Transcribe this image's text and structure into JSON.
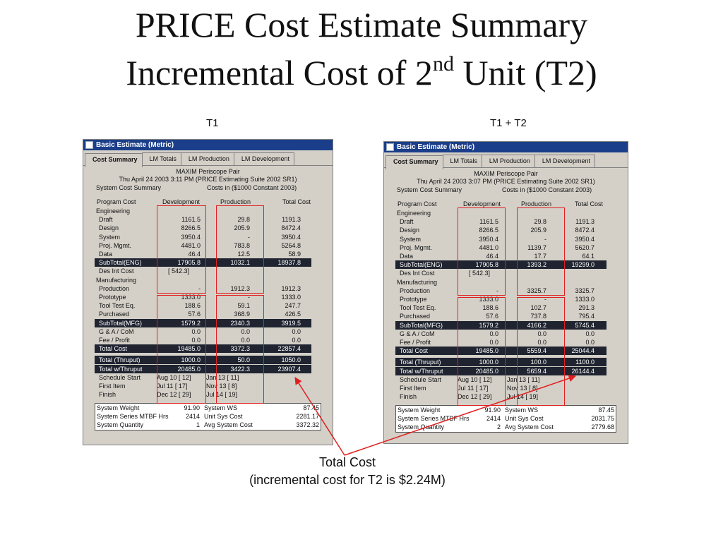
{
  "slide": {
    "title_line1": "PRICE Cost Estimate Summary",
    "title_line2_pre": "Incremental Cost of 2",
    "title_line2_sup": "nd",
    "title_line2_post": " Unit (T2)",
    "label_left": "T1",
    "label_right": "T1 + T2",
    "caption_line1": "Total Cost",
    "caption_line2": "(incremental cost for T2 is $2.24M)",
    "arrow_color": "#e02020"
  },
  "panels": [
    {
      "window_title": "Basic Estimate (Metric)",
      "tabs": [
        "Cost Summary",
        "LM Totals",
        "LM Production",
        "LM Development"
      ],
      "active_tab": 0,
      "project": "MAXIM Periscope Pair",
      "timestamp": "Thu April 24 2003 3:11 PM (PRICE Estimating Suite 2002 SR1)",
      "summary_label": "System Cost Summary",
      "costs_in": "Costs in ($1000 Constant 2003)",
      "col_headers": [
        "Program Cost",
        "Development",
        "Production",
        "Total Cost"
      ],
      "rows": [
        {
          "label": "Engineering",
          "indent": 0,
          "dark": false,
          "v": [
            "",
            "",
            ""
          ]
        },
        {
          "label": "Draft",
          "indent": 1,
          "dark": false,
          "v": [
            "1161.5",
            "29.8",
            "1191.3"
          ]
        },
        {
          "label": "Design",
          "indent": 1,
          "dark": false,
          "v": [
            "8266.5",
            "205.9",
            "8472.4"
          ]
        },
        {
          "label": "System",
          "indent": 1,
          "dark": false,
          "v": [
            "3950.4",
            "-",
            "3950.4"
          ]
        },
        {
          "label": "Proj. Mgmt.",
          "indent": 1,
          "dark": false,
          "v": [
            "4481.0",
            "783.8",
            "5264.8"
          ]
        },
        {
          "label": "Data",
          "indent": 1,
          "dark": false,
          "v": [
            "46.4",
            "12.5",
            "58.9"
          ]
        },
        {
          "label": "SubTotal(ENG)",
          "indent": 1,
          "dark": true,
          "v": [
            "17905.8",
            "1032.1",
            "18937.8"
          ]
        },
        {
          "label": "Des Int Cost",
          "indent": 1,
          "dark": false,
          "v": [
            "[     542.3]",
            "",
            ""
          ]
        },
        {
          "label": "Manufacturing",
          "indent": 0,
          "dark": false,
          "v": [
            "",
            "",
            ""
          ]
        },
        {
          "label": "Production",
          "indent": 1,
          "dark": false,
          "v": [
            "-",
            "1912.3",
            "1912.3"
          ]
        },
        {
          "label": "Prototype",
          "indent": 1,
          "dark": false,
          "v": [
            "1333.0",
            "-",
            "1333.0"
          ]
        },
        {
          "label": "Tool Test Eq.",
          "indent": 1,
          "dark": false,
          "v": [
            "188.6",
            "59.1",
            "247.7"
          ]
        },
        {
          "label": "Purchased",
          "indent": 1,
          "dark": false,
          "v": [
            "57.6",
            "368.9",
            "426.5"
          ]
        },
        {
          "label": "SubTotal(MFG)",
          "indent": 1,
          "dark": true,
          "v": [
            "1579.2",
            "2340.3",
            "3919.5"
          ]
        },
        {
          "label": "G & A / CoM",
          "indent": 1,
          "dark": false,
          "v": [
            "0.0",
            "0.0",
            "0.0"
          ]
        },
        {
          "label": "Fee / Profit",
          "indent": 1,
          "dark": false,
          "v": [
            "0.0",
            "0.0",
            "0.0"
          ]
        },
        {
          "label": "Total Cost",
          "indent": 1,
          "dark": true,
          "v": [
            "19485.0",
            "3372.3",
            "22857.4"
          ]
        },
        {
          "label": "Total (Thruput)",
          "indent": 1,
          "dark": true,
          "v": [
            "1000.0",
            "50.0",
            "1050.0"
          ]
        },
        {
          "label": "Total w/Thruput",
          "indent": 1,
          "dark": true,
          "v": [
            "20485.0",
            "3422.3",
            "23907.4"
          ]
        },
        {
          "label": "Schedule Start",
          "indent": 1,
          "dark": false,
          "v": [
            "Aug 10   [  12]",
            "Jan 13   [  11]",
            ""
          ]
        },
        {
          "label": "First Item",
          "indent": 1,
          "dark": false,
          "v": [
            "Jul 11   [  17]",
            "Nov 13   [   8]",
            ""
          ]
        },
        {
          "label": "Finish",
          "indent": 1,
          "dark": false,
          "v": [
            "Dec 12   [  29]",
            "Jul 14   [  19]",
            ""
          ]
        }
      ],
      "bottom_rows": [
        {
          "a": "System Weight",
          "av": "91.90",
          "b": "System WS",
          "bv": "87.45"
        },
        {
          "a": "System Series MTBF Hrs",
          "av": "2414",
          "b": "Unit Sys Cost",
          "bv": "2281.17"
        },
        {
          "a": "System Quantity",
          "av": "1",
          "b": "Avg System Cost",
          "bv": "3372.32"
        }
      ]
    },
    {
      "window_title": "Basic Estimate (Metric)",
      "tabs": [
        "Cost Summary",
        "LM Totals",
        "LM Production",
        "LM Development"
      ],
      "active_tab": 0,
      "project": "MAXIM Periscope Pair",
      "timestamp": "Thu April 24 2003 3:07 PM (PRICE Estimating Suite 2002 SR1)",
      "summary_label": "System Cost Summary",
      "costs_in": "Costs in ($1000 Constant 2003)",
      "col_headers": [
        "Program Cost",
        "Development",
        "Production",
        "Total Cost"
      ],
      "rows": [
        {
          "label": "Engineering",
          "indent": 0,
          "dark": false,
          "v": [
            "",
            "",
            ""
          ]
        },
        {
          "label": "Draft",
          "indent": 1,
          "dark": false,
          "v": [
            "1161.5",
            "29.8",
            "1191.3"
          ]
        },
        {
          "label": "Design",
          "indent": 1,
          "dark": false,
          "v": [
            "8266.5",
            "205.9",
            "8472.4"
          ]
        },
        {
          "label": "System",
          "indent": 1,
          "dark": false,
          "v": [
            "3950.4",
            "-",
            "3950.4"
          ]
        },
        {
          "label": "Proj. Mgmt.",
          "indent": 1,
          "dark": false,
          "v": [
            "4481.0",
            "1139.7",
            "5620.7"
          ]
        },
        {
          "label": "Data",
          "indent": 1,
          "dark": false,
          "v": [
            "46.4",
            "17.7",
            "64.1"
          ]
        },
        {
          "label": "SubTotal(ENG)",
          "indent": 1,
          "dark": true,
          "v": [
            "17905.8",
            "1393.2",
            "19299.0"
          ]
        },
        {
          "label": "Des Int Cost",
          "indent": 1,
          "dark": false,
          "v": [
            "[     542.3]",
            "",
            ""
          ]
        },
        {
          "label": "Manufacturing",
          "indent": 0,
          "dark": false,
          "v": [
            "",
            "",
            ""
          ]
        },
        {
          "label": "Production",
          "indent": 1,
          "dark": false,
          "v": [
            "-",
            "3325.7",
            "3325.7"
          ]
        },
        {
          "label": "Prototype",
          "indent": 1,
          "dark": false,
          "v": [
            "1333.0",
            "-",
            "1333.0"
          ]
        },
        {
          "label": "Tool Test Eq.",
          "indent": 1,
          "dark": false,
          "v": [
            "188.6",
            "102.7",
            "291.3"
          ]
        },
        {
          "label": "Purchased",
          "indent": 1,
          "dark": false,
          "v": [
            "57.6",
            "737.8",
            "795.4"
          ]
        },
        {
          "label": "SubTotal(MFG)",
          "indent": 1,
          "dark": true,
          "v": [
            "1579.2",
            "4166.2",
            "5745.4"
          ]
        },
        {
          "label": "G & A / CoM",
          "indent": 1,
          "dark": false,
          "v": [
            "0.0",
            "0.0",
            "0.0"
          ]
        },
        {
          "label": "Fee / Profit",
          "indent": 1,
          "dark": false,
          "v": [
            "0.0",
            "0.0",
            "0.0"
          ]
        },
        {
          "label": "Total Cost",
          "indent": 1,
          "dark": true,
          "v": [
            "19485.0",
            "5559.4",
            "25044.4"
          ]
        },
        {
          "label": "Total (Thruput)",
          "indent": 1,
          "dark": true,
          "v": [
            "1000.0",
            "100.0",
            "1100.0"
          ]
        },
        {
          "label": "Total w/Thruput",
          "indent": 1,
          "dark": true,
          "v": [
            "20485.0",
            "5659.4",
            "26144.4"
          ]
        },
        {
          "label": "Schedule Start",
          "indent": 1,
          "dark": false,
          "v": [
            "Aug 10   [  12]",
            "Jan 13   [  11]",
            ""
          ]
        },
        {
          "label": "First Item",
          "indent": 1,
          "dark": false,
          "v": [
            "Jul 11   [  17]",
            "Nov 13   [   8]",
            ""
          ]
        },
        {
          "label": "Finish",
          "indent": 1,
          "dark": false,
          "v": [
            "Dec 12   [  29]",
            "Jul 14   [  19]",
            ""
          ]
        }
      ],
      "bottom_rows": [
        {
          "a": "System Weight",
          "av": "91.90",
          "b": "System WS",
          "bv": "87.45"
        },
        {
          "a": "System Series MTBF Hrs",
          "av": "2414",
          "b": "Unit Sys Cost",
          "bv": "2031.75"
        },
        {
          "a": "System Quantity",
          "av": "2",
          "b": "Avg System Cost",
          "bv": "2779.68"
        }
      ]
    }
  ]
}
